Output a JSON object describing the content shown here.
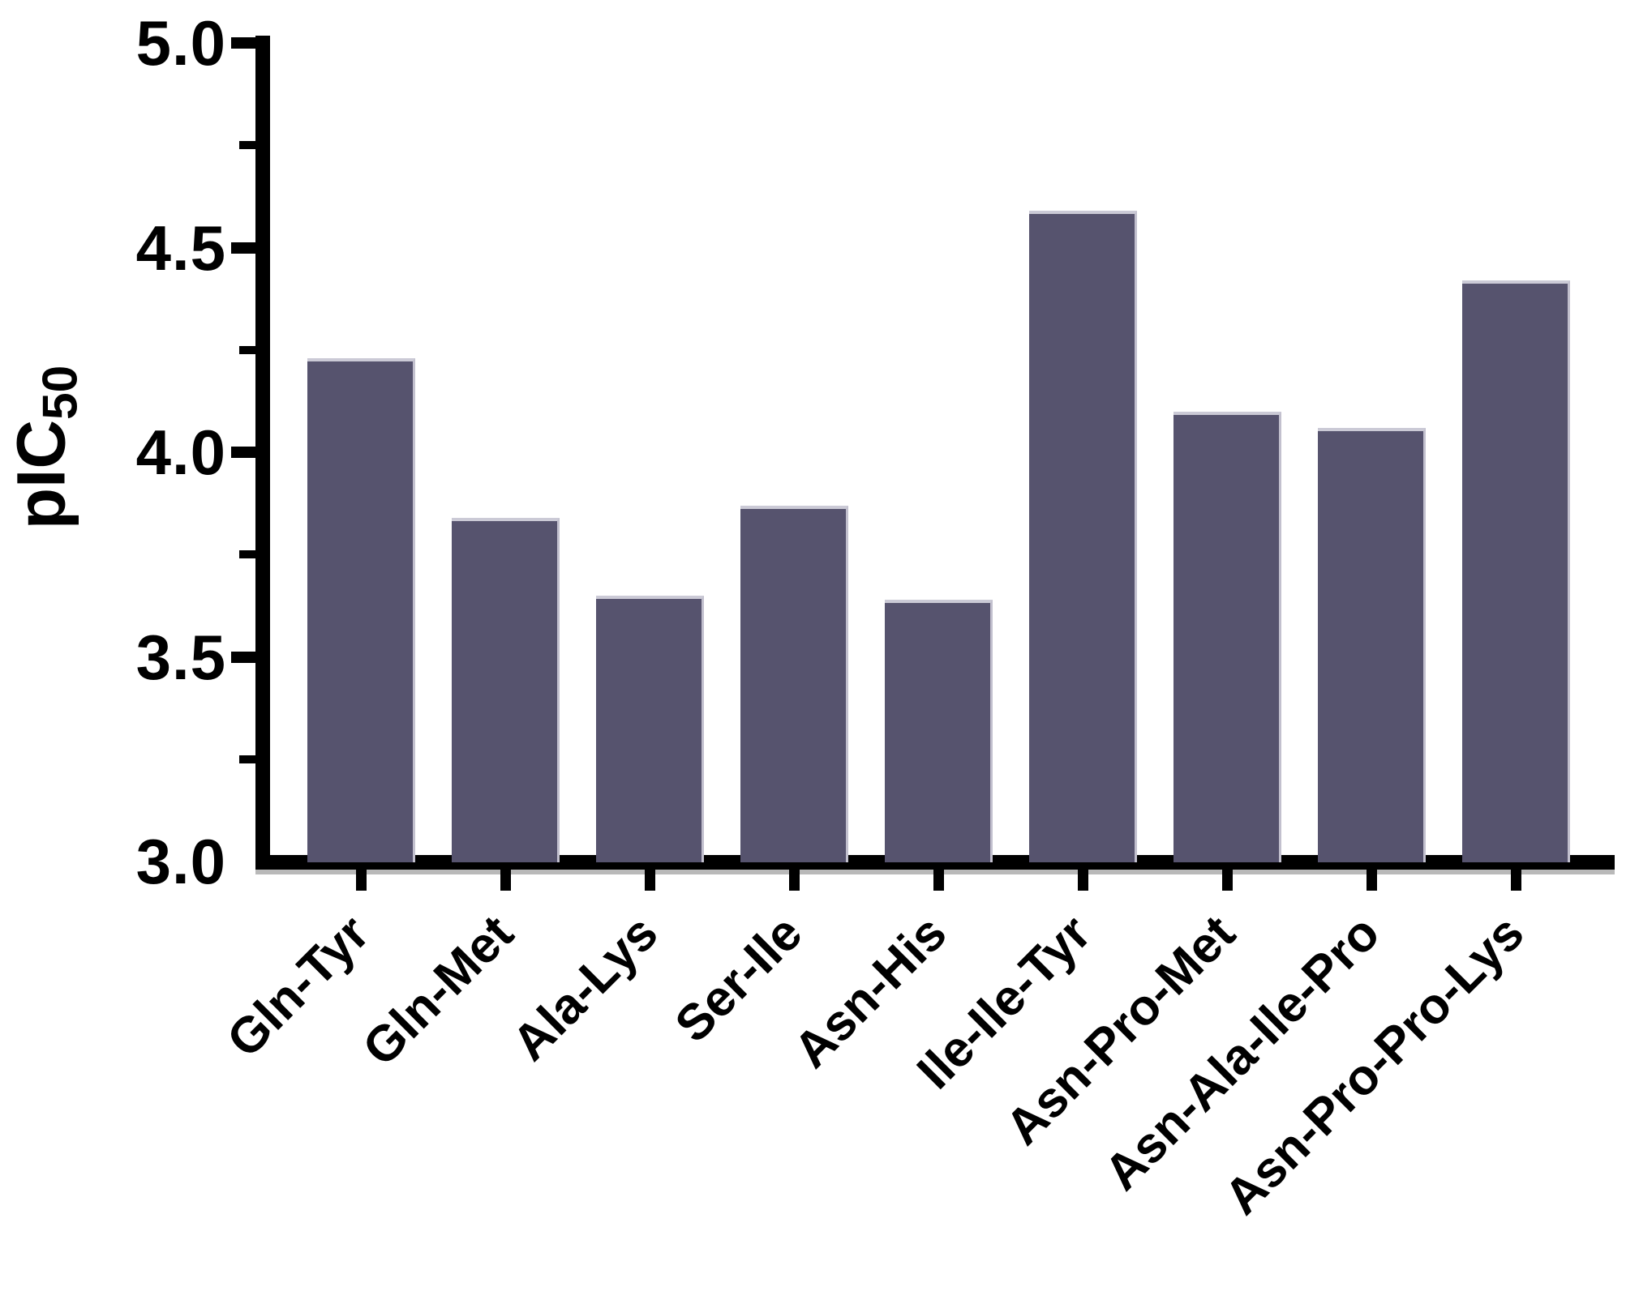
{
  "chart_data": {
    "type": "bar",
    "title": "",
    "ylabel_main": "pIC",
    "ylabel_sub": "50",
    "categories": [
      "Gln-Tyr",
      "Gln-Met",
      "Ala-Lys",
      "Ser-Ile",
      "Asn-His",
      "Ile-Ile-Tyr",
      "Asn-Pro-Met",
      "Asn-Ala-Ile-Pro",
      "Asn-Pro-Pro-Lys"
    ],
    "values": [
      4.23,
      3.84,
      3.65,
      3.87,
      3.64,
      4.59,
      4.1,
      4.06,
      4.42
    ],
    "ylim": [
      3.0,
      5.0
    ],
    "yticks": [
      "5.0",
      "4.5",
      "4.0",
      "3.5",
      "3.0"
    ],
    "ytick_step": 0.5,
    "minor_tick_step": 0.25,
    "xlabel": "",
    "legend": null,
    "grid": false,
    "bar_color": "#56536E",
    "bar_edge_color": "#CBCAD6",
    "axis_color": "#000000",
    "background_color": "#FFFFFF"
  }
}
